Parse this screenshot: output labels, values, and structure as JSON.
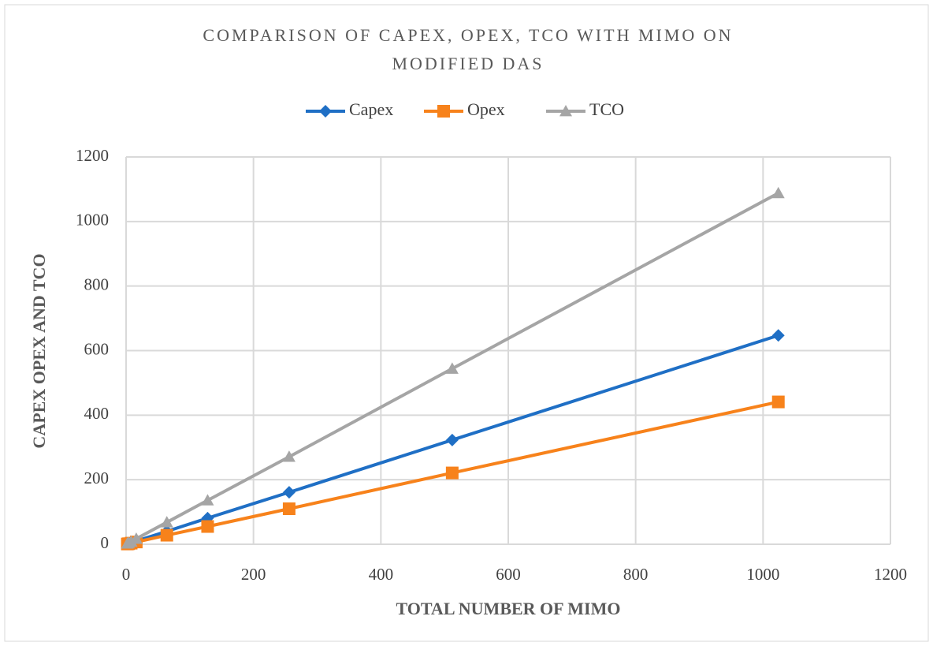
{
  "chart_data": {
    "type": "line",
    "title": [
      "COMPARISON OF CAPEX, OPEX, TCO WITH MIMO ON",
      "MODIFIED DAS"
    ],
    "x_label": "TOTAL NUMBER OF MIMO",
    "y_label": "CAPEX OPEX AND TCO",
    "x": [
      2,
      4,
      8,
      16,
      64,
      128,
      256,
      512,
      1024
    ],
    "series": [
      {
        "name": "Capex",
        "color": "#1f6fc5",
        "marker": "diamond",
        "values": [
          1.3,
          2.5,
          5,
          10,
          40,
          81,
          161,
          323,
          647
        ]
      },
      {
        "name": "Opex",
        "color": "#f7821b",
        "marker": "square",
        "values": [
          0.9,
          1.7,
          3.4,
          7,
          28,
          55,
          110,
          221,
          441
        ]
      },
      {
        "name": "TCO",
        "color": "#a5a5a5",
        "marker": "triangle",
        "values": [
          2.2,
          4.2,
          8.4,
          17,
          68,
          136,
          271,
          544,
          1088
        ]
      }
    ],
    "xlim": [
      0,
      1200
    ],
    "xticks": [
      0,
      200,
      400,
      600,
      800,
      1000,
      1200
    ],
    "ylim": [
      0,
      1200
    ],
    "yticks": [
      0,
      200,
      400,
      600,
      800,
      1000,
      1200
    ],
    "grid": true,
    "legend": "top"
  }
}
